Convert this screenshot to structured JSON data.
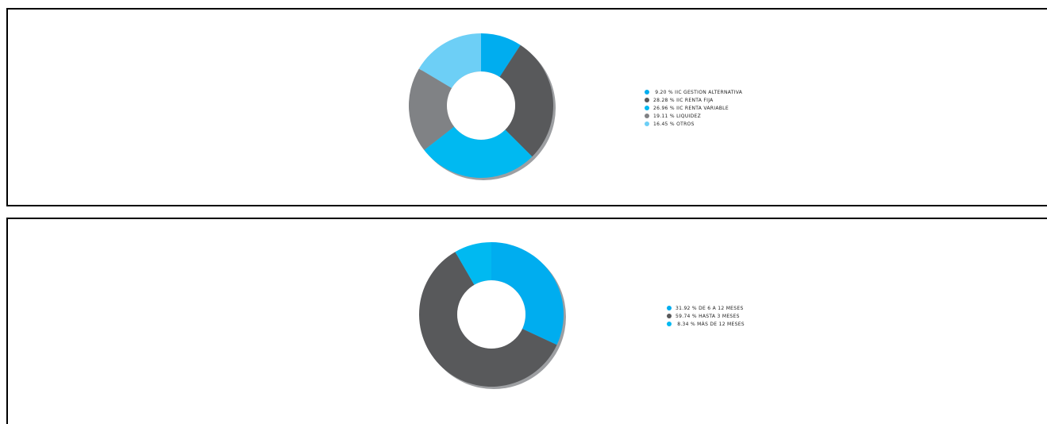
{
  "chart_data": [
    {
      "type": "pie",
      "categories": [
        "IIC GESTION ALTERNATIVA",
        "IIC RENTA FIJA",
        "IIC RENTA VARIABLE",
        "LIQUIDEZ",
        "OTROS"
      ],
      "values": [
        9.2,
        28.28,
        26.96,
        19.11,
        16.45
      ],
      "colors": [
        "#00adef",
        "#58595b",
        "#00b9f1",
        "#808285",
        "#6dcff6"
      ],
      "legend": [
        " 9.20 % IIC GESTION ALTERNATIVA",
        "28.28 % IIC RENTA FIJA",
        "26.96 % IIC RENTA VARIABLE",
        "19.11 % LIQUIDEZ",
        "16.45 % OTROS"
      ],
      "legend_position": "right"
    },
    {
      "type": "pie",
      "categories": [
        "DE 6 A 12 MESES",
        "HASTA 3 MESES",
        "MÁS DE 12 MESES"
      ],
      "values": [
        31.92,
        59.74,
        8.34
      ],
      "colors": [
        "#00adef",
        "#58595b",
        "#00b9f1"
      ],
      "legend": [
        "31.92 % DE 6 A 12 MESES",
        "59.74 % HASTA 3 MESES",
        " 8.34 % MÁS DE 12 MESES"
      ],
      "legend_position": "right"
    }
  ]
}
